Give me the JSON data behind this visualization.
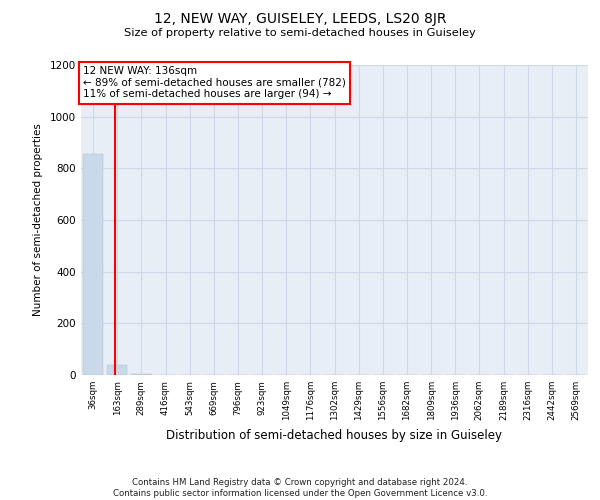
{
  "title": "12, NEW WAY, GUISELEY, LEEDS, LS20 8JR",
  "subtitle": "Size of property relative to semi-detached houses in Guiseley",
  "xlabel": "Distribution of semi-detached houses by size in Guiseley",
  "ylabel": "Number of semi-detached properties",
  "bar_labels": [
    "36sqm",
    "163sqm",
    "289sqm",
    "416sqm",
    "543sqm",
    "669sqm",
    "796sqm",
    "923sqm",
    "1049sqm",
    "1176sqm",
    "1302sqm",
    "1429sqm",
    "1556sqm",
    "1682sqm",
    "1809sqm",
    "1936sqm",
    "2062sqm",
    "2189sqm",
    "2316sqm",
    "2442sqm",
    "2569sqm"
  ],
  "bar_values": [
    855,
    40,
    2,
    1,
    0,
    0,
    0,
    0,
    0,
    0,
    0,
    0,
    0,
    0,
    0,
    0,
    0,
    0,
    0,
    0,
    0
  ],
  "bar_color": "#c9d9ea",
  "vline_color": "red",
  "vline_x": 0.92,
  "annotation_text": "12 NEW WAY: 136sqm\n← 89% of semi-detached houses are smaller (782)\n11% of semi-detached houses are larger (94) →",
  "annotation_box_color": "white",
  "annotation_box_edge": "red",
  "ylim": [
    0,
    1200
  ],
  "yticks": [
    0,
    200,
    400,
    600,
    800,
    1000,
    1200
  ],
  "grid_color": "#cdd8e8",
  "background_color": "#e8eef6",
  "footer": "Contains HM Land Registry data © Crown copyright and database right 2024.\nContains public sector information licensed under the Open Government Licence v3.0."
}
